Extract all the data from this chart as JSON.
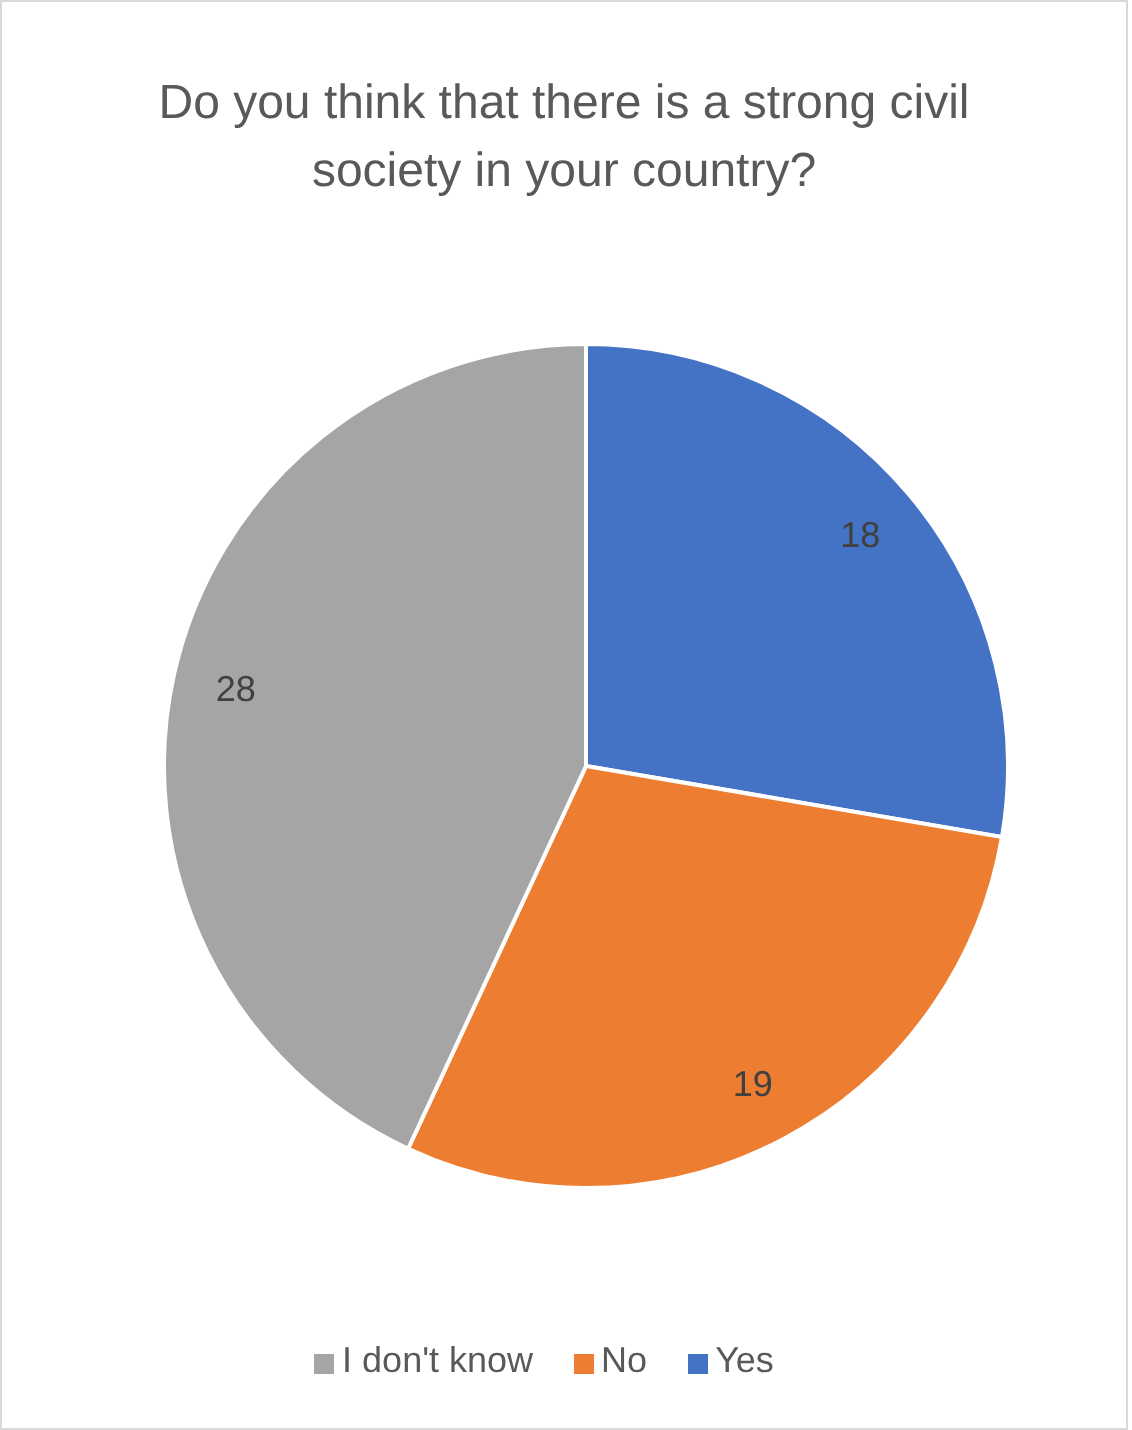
{
  "chart_data": {
    "type": "pie",
    "title": "Do you think that there is a strong civil society in your country?",
    "categories": [
      "Yes",
      "No",
      "I don't know"
    ],
    "values": [
      18,
      19,
      28
    ],
    "colors": [
      "#4472c4",
      "#ed7d31",
      "#a5a5a5"
    ],
    "data_labels": true,
    "legend": "bottom"
  }
}
